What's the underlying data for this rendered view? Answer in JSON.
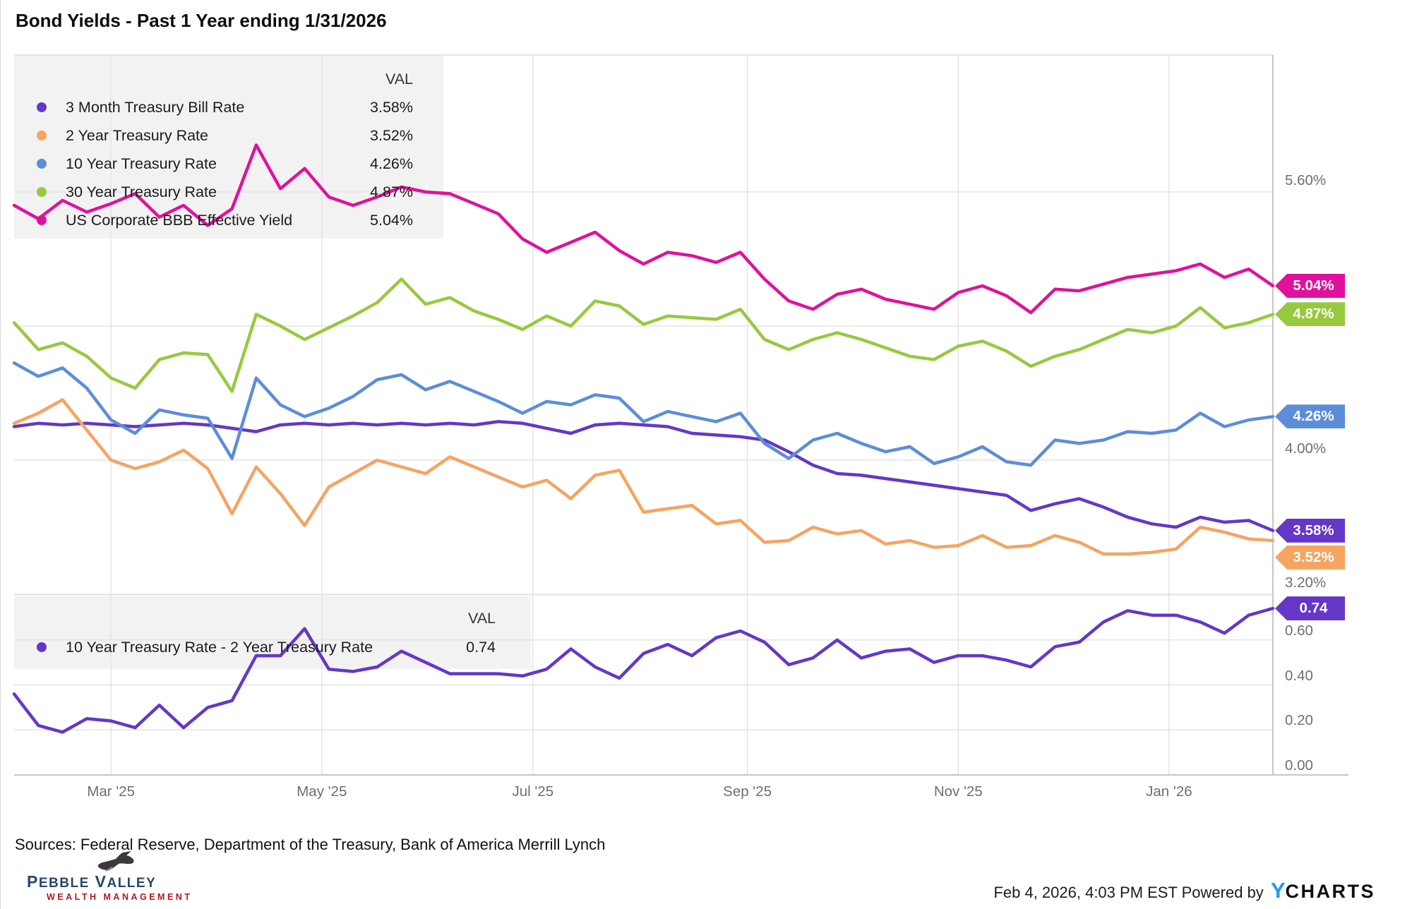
{
  "title": "Bond Yields - Past 1 Year ending 1/31/2026",
  "legend_top": {
    "val_header": "VAL",
    "items": [
      {
        "label": "3 Month Treasury Bill Rate",
        "value": "3.58%",
        "color": "#6537c8"
      },
      {
        "label": "2 Year Treasury Rate",
        "value": "3.52%",
        "color": "#f5a462"
      },
      {
        "label": "10 Year Treasury Rate",
        "value": "4.26%",
        "color": "#5c8dd9"
      },
      {
        "label": "30 Year Treasury Rate",
        "value": "4.87%",
        "color": "#97c93f"
      },
      {
        "label": "US Corporate BBB Effective Yield",
        "value": "5.04%",
        "color": "#e0119d"
      }
    ]
  },
  "legend_bottom": {
    "val_header": "VAL",
    "items": [
      {
        "label": "10 Year Treasury Rate - 2 Year Treasury Rate",
        "value": "0.74",
        "color": "#6537c8"
      }
    ]
  },
  "chart_data": {
    "type": "line",
    "title": "Bond Yields - Past 1 Year ending 1/31/2026",
    "x_unit": "weeks since 2025-02-01",
    "x_range": [
      0,
      52
    ],
    "x_ticks": [
      {
        "label": "Mar '25",
        "pos": 4.0
      },
      {
        "label": "May '25",
        "pos": 12.71
      },
      {
        "label": "Jul '25",
        "pos": 21.43
      },
      {
        "label": "Sep '25",
        "pos": 30.29
      },
      {
        "label": "Nov '25",
        "pos": 39.0
      },
      {
        "label": "Jan '26",
        "pos": 47.71
      }
    ],
    "grid": true,
    "legend_position": "top-left inset",
    "panels": [
      {
        "name": "yields",
        "ylim": [
          3.2,
          6.42
        ],
        "y_labels": [
          {
            "text": "5.60%",
            "v": 5.6
          },
          {
            "text": "4.00%",
            "v": 4.0
          },
          {
            "text": "3.20%",
            "v": 3.2
          }
        ],
        "gridline_values": [
          5.6,
          4.8,
          4.0
        ],
        "series": [
          {
            "name": "3 Month Treasury Bill Rate",
            "color": "#6537c8",
            "end_label": "3.58%",
            "values": [
              4.2,
              4.22,
              4.21,
              4.22,
              4.21,
              4.2,
              4.21,
              4.22,
              4.21,
              4.19,
              4.17,
              4.21,
              4.22,
              4.21,
              4.22,
              4.21,
              4.22,
              4.21,
              4.22,
              4.21,
              4.23,
              4.22,
              4.19,
              4.16,
              4.21,
              4.22,
              4.21,
              4.2,
              4.16,
              4.15,
              4.14,
              4.12,
              4.05,
              3.97,
              3.92,
              3.91,
              3.89,
              3.87,
              3.85,
              3.83,
              3.81,
              3.79,
              3.7,
              3.74,
              3.77,
              3.72,
              3.66,
              3.62,
              3.6,
              3.66,
              3.63,
              3.64,
              3.58
            ]
          },
          {
            "name": "2 Year Treasury Rate",
            "color": "#f5a462",
            "end_label": "3.52%",
            "values": [
              4.22,
              4.28,
              4.36,
              4.18,
              4.0,
              3.95,
              3.99,
              4.06,
              3.95,
              3.68,
              3.96,
              3.8,
              3.61,
              3.84,
              3.92,
              4.0,
              3.96,
              3.92,
              4.02,
              3.96,
              3.9,
              3.84,
              3.88,
              3.77,
              3.91,
              3.94,
              3.69,
              3.71,
              3.73,
              3.62,
              3.64,
              3.51,
              3.52,
              3.6,
              3.56,
              3.58,
              3.5,
              3.52,
              3.48,
              3.49,
              3.55,
              3.48,
              3.49,
              3.55,
              3.51,
              3.44,
              3.44,
              3.45,
              3.47,
              3.6,
              3.57,
              3.53,
              3.52
            ]
          },
          {
            "name": "10 Year Treasury Rate",
            "color": "#5c8dd9",
            "end_label": "4.26%",
            "values": [
              4.58,
              4.5,
              4.55,
              4.43,
              4.24,
              4.16,
              4.3,
              4.27,
              4.25,
              4.01,
              4.49,
              4.33,
              4.26,
              4.31,
              4.38,
              4.48,
              4.51,
              4.42,
              4.47,
              4.41,
              4.35,
              4.28,
              4.35,
              4.33,
              4.39,
              4.37,
              4.23,
              4.29,
              4.26,
              4.23,
              4.28,
              4.1,
              4.01,
              4.12,
              4.16,
              4.1,
              4.05,
              4.08,
              3.98,
              4.02,
              4.08,
              3.99,
              3.97,
              4.12,
              4.1,
              4.12,
              4.17,
              4.16,
              4.18,
              4.28,
              4.2,
              4.24,
              4.26
            ]
          },
          {
            "name": "30 Year Treasury Rate",
            "color": "#97c93f",
            "end_label": "4.87%",
            "values": [
              4.82,
              4.66,
              4.7,
              4.62,
              4.49,
              4.43,
              4.6,
              4.64,
              4.63,
              4.41,
              4.87,
              4.8,
              4.72,
              4.79,
              4.86,
              4.94,
              5.08,
              4.93,
              4.97,
              4.89,
              4.84,
              4.78,
              4.86,
              4.8,
              4.95,
              4.92,
              4.81,
              4.86,
              4.85,
              4.84,
              4.9,
              4.72,
              4.66,
              4.72,
              4.76,
              4.72,
              4.67,
              4.62,
              4.6,
              4.68,
              4.71,
              4.65,
              4.56,
              4.62,
              4.66,
              4.72,
              4.78,
              4.76,
              4.8,
              4.91,
              4.79,
              4.82,
              4.87
            ]
          },
          {
            "name": "US Corporate BBB Effective Yield",
            "color": "#e0119d",
            "end_label": "5.04%",
            "values": [
              5.52,
              5.44,
              5.55,
              5.48,
              5.53,
              5.59,
              5.45,
              5.52,
              5.4,
              5.5,
              5.88,
              5.62,
              5.74,
              5.57,
              5.52,
              5.57,
              5.63,
              5.6,
              5.59,
              5.53,
              5.47,
              5.32,
              5.24,
              5.3,
              5.36,
              5.25,
              5.17,
              5.24,
              5.22,
              5.18,
              5.24,
              5.08,
              4.95,
              4.9,
              4.99,
              5.02,
              4.96,
              4.93,
              4.9,
              5.0,
              5.04,
              4.98,
              4.88,
              5.02,
              5.01,
              5.05,
              5.09,
              5.11,
              5.13,
              5.17,
              5.09,
              5.14,
              5.04
            ]
          }
        ]
      },
      {
        "name": "spread",
        "ylim": [
          0.0,
          0.8
        ],
        "y_labels": [
          {
            "text": "0.60",
            "v": 0.6
          },
          {
            "text": "0.40",
            "v": 0.4
          },
          {
            "text": "0.20",
            "v": 0.2
          },
          {
            "text": "0.00",
            "v": 0.0
          }
        ],
        "gridline_values": [
          0.6,
          0.4,
          0.2
        ],
        "series": [
          {
            "name": "10 Year Treasury Rate - 2 Year Treasury Rate",
            "color": "#6537c8",
            "end_label": "0.74",
            "values": [
              0.36,
              0.22,
              0.19,
              0.25,
              0.24,
              0.21,
              0.31,
              0.21,
              0.3,
              0.33,
              0.53,
              0.53,
              0.65,
              0.47,
              0.46,
              0.48,
              0.55,
              0.5,
              0.45,
              0.45,
              0.45,
              0.44,
              0.47,
              0.56,
              0.48,
              0.43,
              0.54,
              0.58,
              0.53,
              0.61,
              0.64,
              0.59,
              0.49,
              0.52,
              0.6,
              0.52,
              0.55,
              0.56,
              0.5,
              0.53,
              0.53,
              0.51,
              0.48,
              0.57,
              0.59,
              0.68,
              0.73,
              0.71,
              0.71,
              0.68,
              0.63,
              0.71,
              0.74
            ]
          }
        ]
      }
    ]
  },
  "footer": {
    "sources": "Sources: Federal Reserve, Department of the Treasury, Bank of America Merrill Lynch",
    "logo_name": "Pebble Valley",
    "logo_sub": "WEALTH MANAGEMENT",
    "timestamp": "Feb 4, 2026, 4:03 PM EST Powered by",
    "ycharts_y": "Y",
    "ycharts_charts": "CHARTS"
  }
}
